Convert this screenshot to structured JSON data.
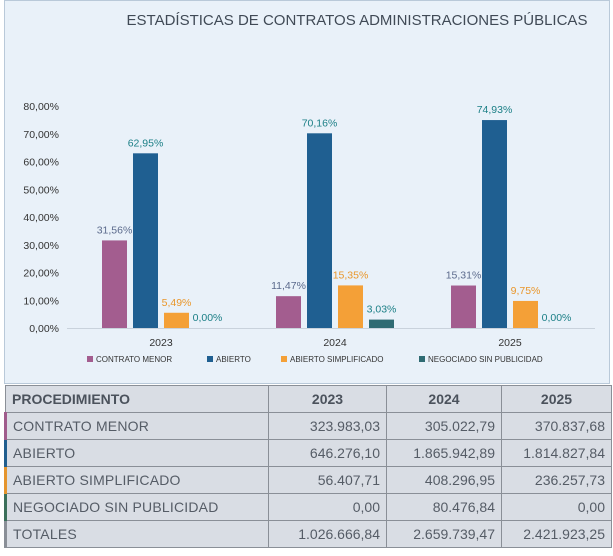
{
  "chart_data": {
    "type": "bar",
    "title": "ESTADÍSTICAS DE CONTRATOS ADMINISTRACIONES PÚBLICAS",
    "categories": [
      "2023",
      "2024",
      "2025"
    ],
    "series": [
      {
        "name": "CONTRATO MENOR",
        "color": "#a35d8f",
        "values": [
          31.56,
          11.47,
          15.31
        ],
        "labels": [
          "31,56%",
          "11,47%",
          "15,31%"
        ],
        "label_color": "#5b6a8c"
      },
      {
        "name": "ABIERTO",
        "color": "#1f5f91",
        "values": [
          62.95,
          70.16,
          74.93
        ],
        "labels": [
          "62,95%",
          "70,16%",
          "74,93%"
        ],
        "label_color": "#1b7f86"
      },
      {
        "name": "ABIERTO SIMPLIFICADO",
        "color": "#f4a037",
        "values": [
          5.49,
          15.35,
          9.75
        ],
        "labels": [
          "5,49%",
          "15,35%",
          "9,75%"
        ],
        "label_color": "#e9962a"
      },
      {
        "name": "NEGOCIADO SIN PUBLICIDAD",
        "color": "#2f6b73",
        "values": [
          0.0,
          3.03,
          0.0
        ],
        "labels": [
          "0,00%",
          "3,03%",
          "0,00%"
        ],
        "label_color": "#1b7f86"
      }
    ],
    "y_ticks": [
      "0,00%",
      "10,00%",
      "20,00%",
      "30,00%",
      "40,00%",
      "50,00%",
      "60,00%",
      "70,00%",
      "80,00%"
    ],
    "ylim": [
      0,
      80
    ],
    "grid": false,
    "legend_position": "bottom"
  },
  "table": {
    "headers": [
      "PROCEDIMIENTO",
      "2023",
      "2024",
      "2025"
    ],
    "rows": [
      [
        "CONTRATO MENOR",
        "323.983,03",
        "305.022,79",
        "370.837,68"
      ],
      [
        "ABIERTO",
        "646.276,10",
        "1.865.942,89",
        "1.814.827,84"
      ],
      [
        "ABIERTO SIMPLIFICADO",
        "56.407,71",
        "408.296,95",
        "236.257,73"
      ],
      [
        "NEGOCIADO SIN PUBLICIDAD",
        "0,00",
        "80.476,84",
        "0,00"
      ],
      [
        "TOTALES",
        "1.026.666,84",
        "2.659.739,47",
        "2.421.923,25"
      ]
    ]
  }
}
